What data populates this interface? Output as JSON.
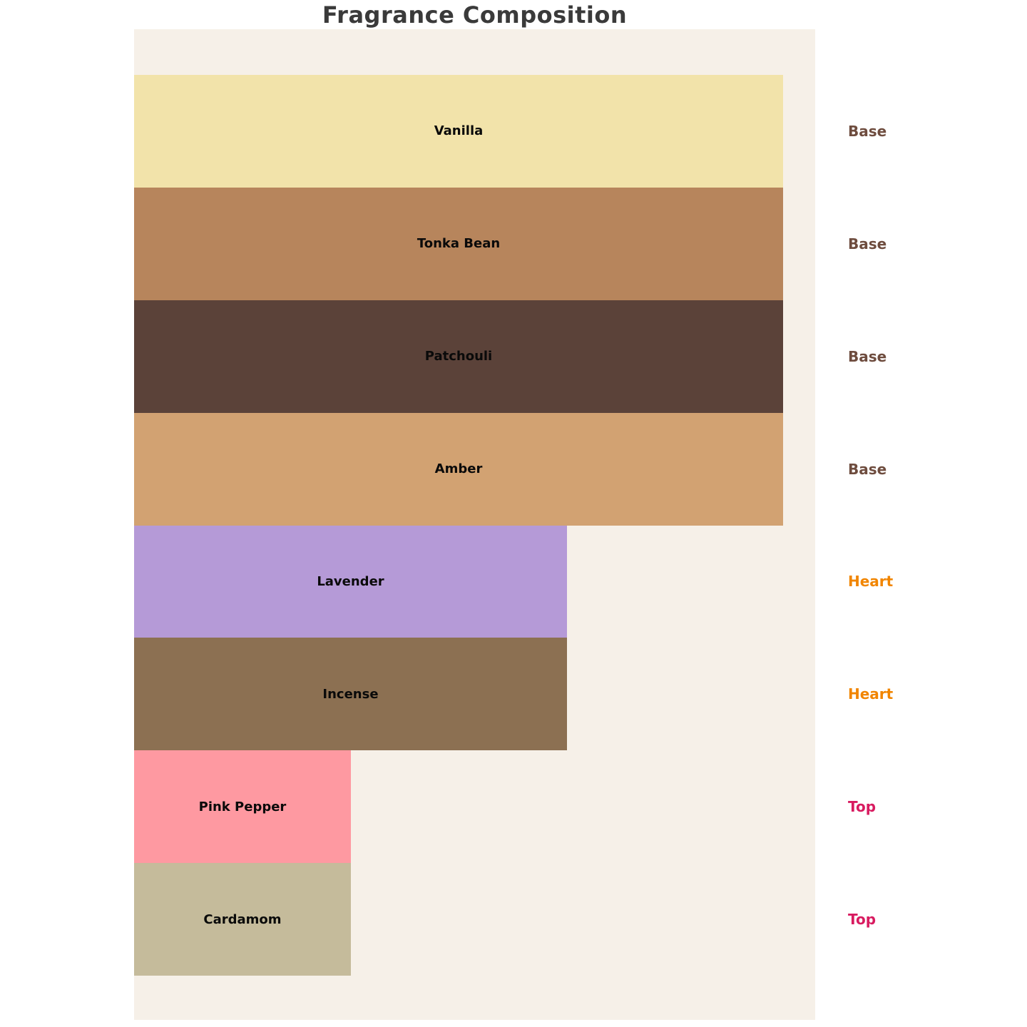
{
  "title": "Fragrance Composition",
  "background": {
    "page": "#ffffff",
    "chart_area": "#f6f0e8",
    "title_color": "#3a3a3a"
  },
  "chart_data": {
    "type": "bar",
    "orientation": "horizontal",
    "title": "Fragrance Composition",
    "grid": false,
    "axes_visible": false,
    "legend_position": "right-of-each-bar",
    "categories": [
      "Vanilla",
      "Tonka Bean",
      "Patchouli",
      "Amber",
      "Lavender",
      "Incense",
      "Pink Pepper",
      "Cardamom"
    ],
    "bars": [
      {
        "label": "Vanilla",
        "group": "Base",
        "relative_width": 1.0,
        "color": "#f2e3aa"
      },
      {
        "label": "Tonka Bean",
        "group": "Base",
        "relative_width": 1.0,
        "color": "#b7855c"
      },
      {
        "label": "Patchouli",
        "group": "Base",
        "relative_width": 1.0,
        "color": "#5b4239"
      },
      {
        "label": "Amber",
        "group": "Base",
        "relative_width": 1.0,
        "color": "#d2a272"
      },
      {
        "label": "Lavender",
        "group": "Heart",
        "relative_width": 0.667,
        "color": "#b59ad7"
      },
      {
        "label": "Incense",
        "group": "Heart",
        "relative_width": 0.667,
        "color": "#8c7052"
      },
      {
        "label": "Pink Pepper",
        "group": "Top",
        "relative_width": 0.334,
        "color": "#fe99a1"
      },
      {
        "label": "Cardamom",
        "group": "Top",
        "relative_width": 0.334,
        "color": "#c5bb9b"
      }
    ],
    "group_colors": {
      "Base": "#6e4c3e",
      "Heart": "#f18500",
      "Top": "#d81b60"
    }
  }
}
